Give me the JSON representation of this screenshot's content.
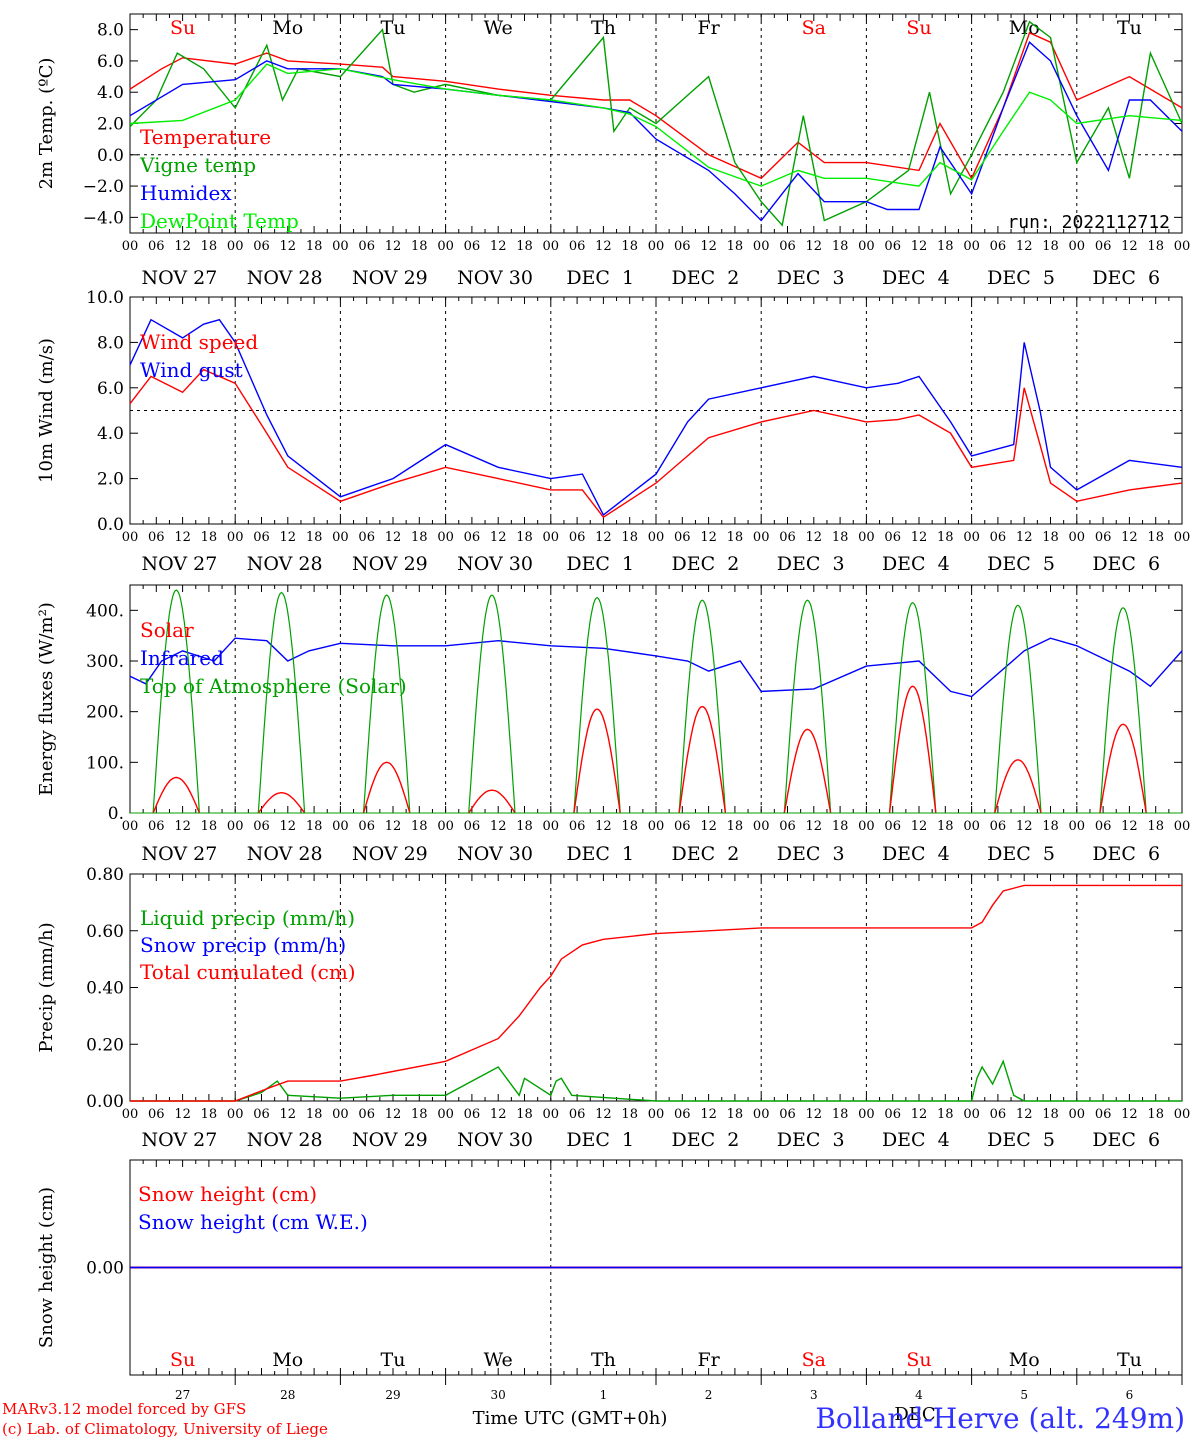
{
  "colors": {
    "red": "#ff0000",
    "green": "#00a000",
    "blue": "#0000ff",
    "lightgreen": "#00ee00",
    "purple": "#800080",
    "title_blue": "#3333ff"
  },
  "footer": {
    "credit_line1": "MARv3.12 model forced by GFS",
    "credit_line2": "(c) Lab. of Climatology, University of Liege",
    "time_label": "Time UTC (GMT+0h)",
    "station": "Bolland-Herve (alt. 249m)",
    "overlap_text": "DEC"
  },
  "days": {
    "names": [
      "Su",
      "Mo",
      "Tu",
      "We",
      "Th",
      "Fr",
      "Sa",
      "Su",
      "Mo",
      "Tu"
    ],
    "name_colors": [
      "#ff0000",
      "#000000",
      "#000000",
      "#000000",
      "#000000",
      "#000000",
      "#ff0000",
      "#ff0000",
      "#000000",
      "#000000"
    ],
    "dates": [
      "NOV 27",
      "NOV 28",
      "NOV 29",
      "NOV 30",
      "DEC  1",
      "DEC  2",
      "DEC  3",
      "DEC  4",
      "DEC  5",
      "DEC  6"
    ],
    "numbers": [
      "27",
      "28",
      "29",
      "30",
      "1",
      "2",
      "3",
      "4",
      "5",
      "6"
    ],
    "hour_ticks": [
      "00",
      "06",
      "12",
      "18"
    ],
    "end_hour": "00"
  },
  "chart_data": [
    {
      "type": "line",
      "ylabel": "2m Temp. (ºC)",
      "ylim": [
        -5,
        9
      ],
      "yticks": [
        -4,
        -2,
        0,
        2,
        4,
        6,
        8
      ],
      "ytick_labels": [
        "−4.0",
        "−2.0",
        "0.0",
        "2.0",
        "4.0",
        "6.0",
        "8.0"
      ],
      "grid": "vertical day lines, dashed zero line",
      "run_label": "run: 2022112712",
      "x_unit": "days since NOV 27 00 UTC",
      "series": [
        {
          "name": "Temperature",
          "color": "#ff0000",
          "x": [
            0,
            0.3,
            0.5,
            1,
            1.3,
            1.5,
            2,
            2.4,
            2.5,
            3,
            3.5,
            4,
            4.5,
            4.75,
            5,
            5.5,
            6,
            6.35,
            6.6,
            7,
            7.5,
            7.7,
            8,
            8.3,
            8.55,
            8.75,
            9,
            9.5,
            10
          ],
          "y": [
            4.2,
            5.5,
            6.2,
            5.8,
            6.5,
            6.0,
            5.8,
            5.6,
            5.0,
            4.7,
            4.2,
            3.8,
            3.5,
            3.5,
            2.5,
            0.0,
            -1.5,
            0.8,
            -0.5,
            -0.5,
            -1.0,
            2.0,
            -1.5,
            3.0,
            7.8,
            7.2,
            3.5,
            5.0,
            3.0
          ]
        },
        {
          "name": "Vigne temp",
          "color": "#00a000",
          "x": [
            0,
            0.25,
            0.45,
            0.7,
            1,
            1.3,
            1.45,
            1.6,
            2,
            2.4,
            2.5,
            2.7,
            3,
            3.5,
            4,
            4.5,
            4.6,
            4.75,
            5,
            5.5,
            5.75,
            6,
            6.2,
            6.4,
            6.6,
            7,
            7.4,
            7.6,
            7.8,
            8,
            8.3,
            8.55,
            8.75,
            9,
            9.3,
            9.5,
            9.7,
            10
          ],
          "y": [
            1.8,
            3.5,
            6.5,
            5.5,
            3.0,
            7.0,
            3.5,
            5.5,
            5.0,
            8.0,
            4.5,
            4.0,
            4.5,
            3.8,
            3.5,
            7.5,
            1.5,
            3.0,
            2.0,
            5.0,
            -0.5,
            -3.0,
            -4.5,
            2.5,
            -4.2,
            -3.0,
            -1.0,
            4.0,
            -2.5,
            0.0,
            4.0,
            8.5,
            7.5,
            -0.5,
            3.0,
            -1.5,
            6.5,
            2.0
          ]
        },
        {
          "name": "Humidex",
          "color": "#0000ff",
          "x": [
            0,
            0.5,
            1,
            1.3,
            1.5,
            2,
            2.4,
            2.5,
            3,
            3.5,
            4,
            4.5,
            4.75,
            5,
            5.5,
            5.75,
            6,
            6.35,
            6.6,
            7,
            7.2,
            7.5,
            7.7,
            8,
            8.3,
            8.55,
            8.75,
            9,
            9.3,
            9.5,
            9.7,
            10
          ],
          "y": [
            2.5,
            4.5,
            4.8,
            6.0,
            5.5,
            5.5,
            5.0,
            4.5,
            4.2,
            3.8,
            3.4,
            3.0,
            2.7,
            1.0,
            -1.0,
            -2.5,
            -4.2,
            -1.2,
            -3.0,
            -3.0,
            -3.5,
            -3.5,
            0.5,
            -2.5,
            3.0,
            7.2,
            6.0,
            2.5,
            -1.0,
            3.5,
            3.5,
            1.5
          ]
        },
        {
          "name": "DewPoint Temp",
          "color": "#00ee00",
          "x": [
            0,
            0.5,
            1,
            1.3,
            1.5,
            2,
            2.5,
            3,
            3.5,
            4,
            4.5,
            4.75,
            5,
            5.5,
            6,
            6.35,
            6.6,
            7,
            7.5,
            7.7,
            8,
            8.3,
            8.55,
            8.75,
            9,
            9.5,
            10
          ],
          "y": [
            2.0,
            2.2,
            3.5,
            5.8,
            5.2,
            5.5,
            4.8,
            4.2,
            3.8,
            3.5,
            3.0,
            2.6,
            1.8,
            -0.8,
            -2.0,
            -1.0,
            -1.5,
            -1.5,
            -2.0,
            -0.5,
            -1.6,
            1.5,
            4.0,
            3.5,
            2.0,
            2.5,
            2.2
          ]
        }
      ]
    },
    {
      "type": "line",
      "ylabel": "10m Wind (m/s)",
      "ylim": [
        0,
        10
      ],
      "yticks": [
        0,
        2,
        4,
        6,
        8,
        10
      ],
      "ytick_labels": [
        "0.0",
        "2.0",
        "4.0",
        "6.0",
        "8.0",
        "10.0"
      ],
      "grid": "vertical day lines, dashed line at 5",
      "series": [
        {
          "name": "Wind speed",
          "color": "#ff0000",
          "x": [
            0,
            0.2,
            0.5,
            0.7,
            1,
            1.3,
            1.5,
            2,
            2.5,
            3,
            3.5,
            4,
            4.3,
            4.5,
            5,
            5.3,
            5.5,
            6,
            6.5,
            7,
            7.3,
            7.5,
            7.8,
            8,
            8.4,
            8.5,
            8.65,
            8.75,
            9,
            9.5,
            10
          ],
          "y": [
            5.3,
            6.5,
            5.8,
            6.8,
            6.2,
            4.0,
            2.5,
            1.0,
            1.8,
            2.5,
            2.0,
            1.5,
            1.5,
            0.3,
            1.8,
            3.0,
            3.8,
            4.5,
            5.0,
            4.5,
            4.6,
            4.8,
            4.0,
            2.5,
            2.8,
            6.0,
            3.5,
            1.8,
            1.0,
            1.5,
            1.8
          ]
        },
        {
          "name": "Wind gust",
          "color": "#0000ff",
          "x": [
            0,
            0.2,
            0.5,
            0.7,
            0.85,
            1,
            1.3,
            1.5,
            2,
            2.5,
            3,
            3.5,
            4,
            4.3,
            4.5,
            5,
            5.3,
            5.5,
            6,
            6.5,
            7,
            7.3,
            7.5,
            7.8,
            8,
            8.4,
            8.5,
            8.65,
            8.75,
            9,
            9.5,
            10
          ],
          "y": [
            7.0,
            9.0,
            8.2,
            8.8,
            9.0,
            8.0,
            4.8,
            3.0,
            1.2,
            2.0,
            3.5,
            2.5,
            2.0,
            2.2,
            0.4,
            2.2,
            4.5,
            5.5,
            6.0,
            6.5,
            6.0,
            6.2,
            6.5,
            4.5,
            3.0,
            3.5,
            8.0,
            5.0,
            2.5,
            1.5,
            2.8,
            2.5
          ]
        }
      ]
    },
    {
      "type": "line",
      "ylabel": "Energy fluxes (W/m²)",
      "ylim": [
        0,
        450
      ],
      "yticks": [
        0,
        100,
        200,
        300,
        400
      ],
      "ytick_labels": [
        "0.",
        "100.",
        "200.",
        "300.",
        "400."
      ],
      "solar_peaks": [
        70,
        40,
        100,
        45,
        205,
        210,
        165,
        250,
        105,
        175
      ],
      "toa_peaks": [
        440,
        435,
        430,
        430,
        425,
        420,
        420,
        415,
        410,
        405
      ],
      "series": [
        {
          "name": "Solar",
          "color": "#ff0000"
        },
        {
          "name": "Infrared",
          "color": "#0000ff",
          "x": [
            0,
            0.15,
            0.3,
            0.5,
            0.8,
            1,
            1.3,
            1.5,
            1.7,
            2,
            2.5,
            3,
            3.5,
            4,
            4.5,
            5,
            5.3,
            5.5,
            5.8,
            6,
            6.5,
            7,
            7.5,
            7.8,
            8,
            8.5,
            8.75,
            9,
            9.5,
            9.7,
            10
          ],
          "y": [
            270,
            255,
            300,
            320,
            300,
            345,
            340,
            300,
            320,
            335,
            330,
            330,
            340,
            330,
            325,
            310,
            300,
            280,
            300,
            240,
            245,
            290,
            300,
            240,
            230,
            320,
            345,
            330,
            280,
            250,
            320
          ]
        },
        {
          "name": "Top of Atmosphere (Solar)",
          "color": "#00a000"
        }
      ]
    },
    {
      "type": "line",
      "ylabel": "Precip (mm/h)",
      "ylim": [
        0,
        0.8
      ],
      "yticks": [
        0,
        0.2,
        0.4,
        0.6,
        0.8
      ],
      "ytick_labels": [
        "0.00",
        "0.20",
        "0.40",
        "0.60",
        "0.80"
      ],
      "series": [
        {
          "name": "Liquid precip (mm/h)",
          "color": "#00a000",
          "x": [
            0,
            1,
            1.25,
            1.4,
            1.5,
            2,
            2.5,
            3,
            3.5,
            3.7,
            3.75,
            4,
            4.05,
            4.1,
            4.2,
            5,
            6,
            7,
            8,
            8.05,
            8.1,
            8.2,
            8.3,
            8.4,
            8.5,
            10
          ],
          "y": [
            0,
            0,
            0.03,
            0.07,
            0.02,
            0.01,
            0.02,
            0.02,
            0.12,
            0.02,
            0.08,
            0.02,
            0.07,
            0.08,
            0.02,
            0,
            0,
            0,
            0,
            0.08,
            0.12,
            0.06,
            0.14,
            0.02,
            0,
            0
          ]
        },
        {
          "name": "Snow precip (mm/h)",
          "color": "#0000ff"
        },
        {
          "name": "Total cumulated (cm)",
          "color": "#ff0000",
          "x": [
            0,
            1,
            1.35,
            1.5,
            2,
            2.3,
            3,
            3.5,
            3.7,
            3.9,
            4,
            4.1,
            4.3,
            4.5,
            5,
            5.5,
            6,
            7,
            8,
            8.1,
            8.2,
            8.3,
            8.5,
            10
          ],
          "y": [
            0,
            0,
            0.05,
            0.07,
            0.07,
            0.09,
            0.14,
            0.22,
            0.3,
            0.4,
            0.44,
            0.5,
            0.55,
            0.57,
            0.59,
            0.6,
            0.61,
            0.61,
            0.61,
            0.63,
            0.69,
            0.74,
            0.76,
            0.76
          ]
        }
      ]
    },
    {
      "type": "line",
      "ylabel": "Snow height (cm)",
      "yticks": [
        0
      ],
      "ytick_labels": [
        "0.00"
      ],
      "series": [
        {
          "name": "Snow height (cm)",
          "color": "#ff0000",
          "x": [
            0,
            10
          ],
          "y": [
            0,
            0
          ]
        },
        {
          "name": "Snow height (cm W.E.)",
          "color": "#0000ff",
          "x": [
            0,
            10
          ],
          "y": [
            0,
            0
          ]
        }
      ]
    }
  ]
}
